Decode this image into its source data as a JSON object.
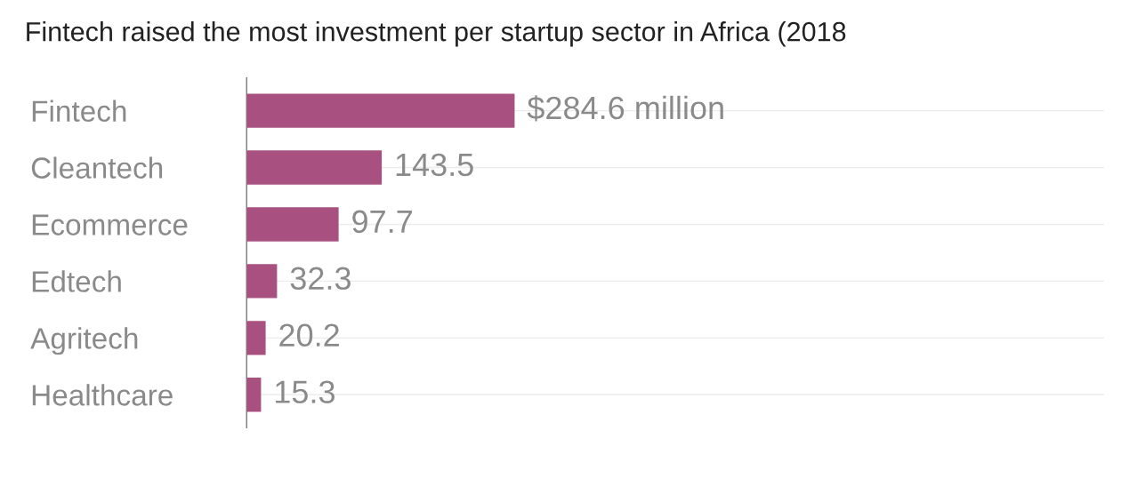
{
  "chart_data": {
    "type": "bar",
    "orientation": "horizontal",
    "title": "Fintech raised the most investment per startup sector in Africa (2018",
    "categories": [
      "Fintech",
      "Cleantech",
      "Ecommerce",
      "Edtech",
      "Agritech",
      "Healthcare"
    ],
    "values": [
      284.6,
      143.5,
      97.7,
      32.3,
      20.2,
      15.3
    ],
    "value_labels": [
      "$284.6 million",
      "143.5",
      "97.7",
      "32.3",
      "20.2",
      "15.3"
    ],
    "color": "#a8507f",
    "grid": "y"
  }
}
